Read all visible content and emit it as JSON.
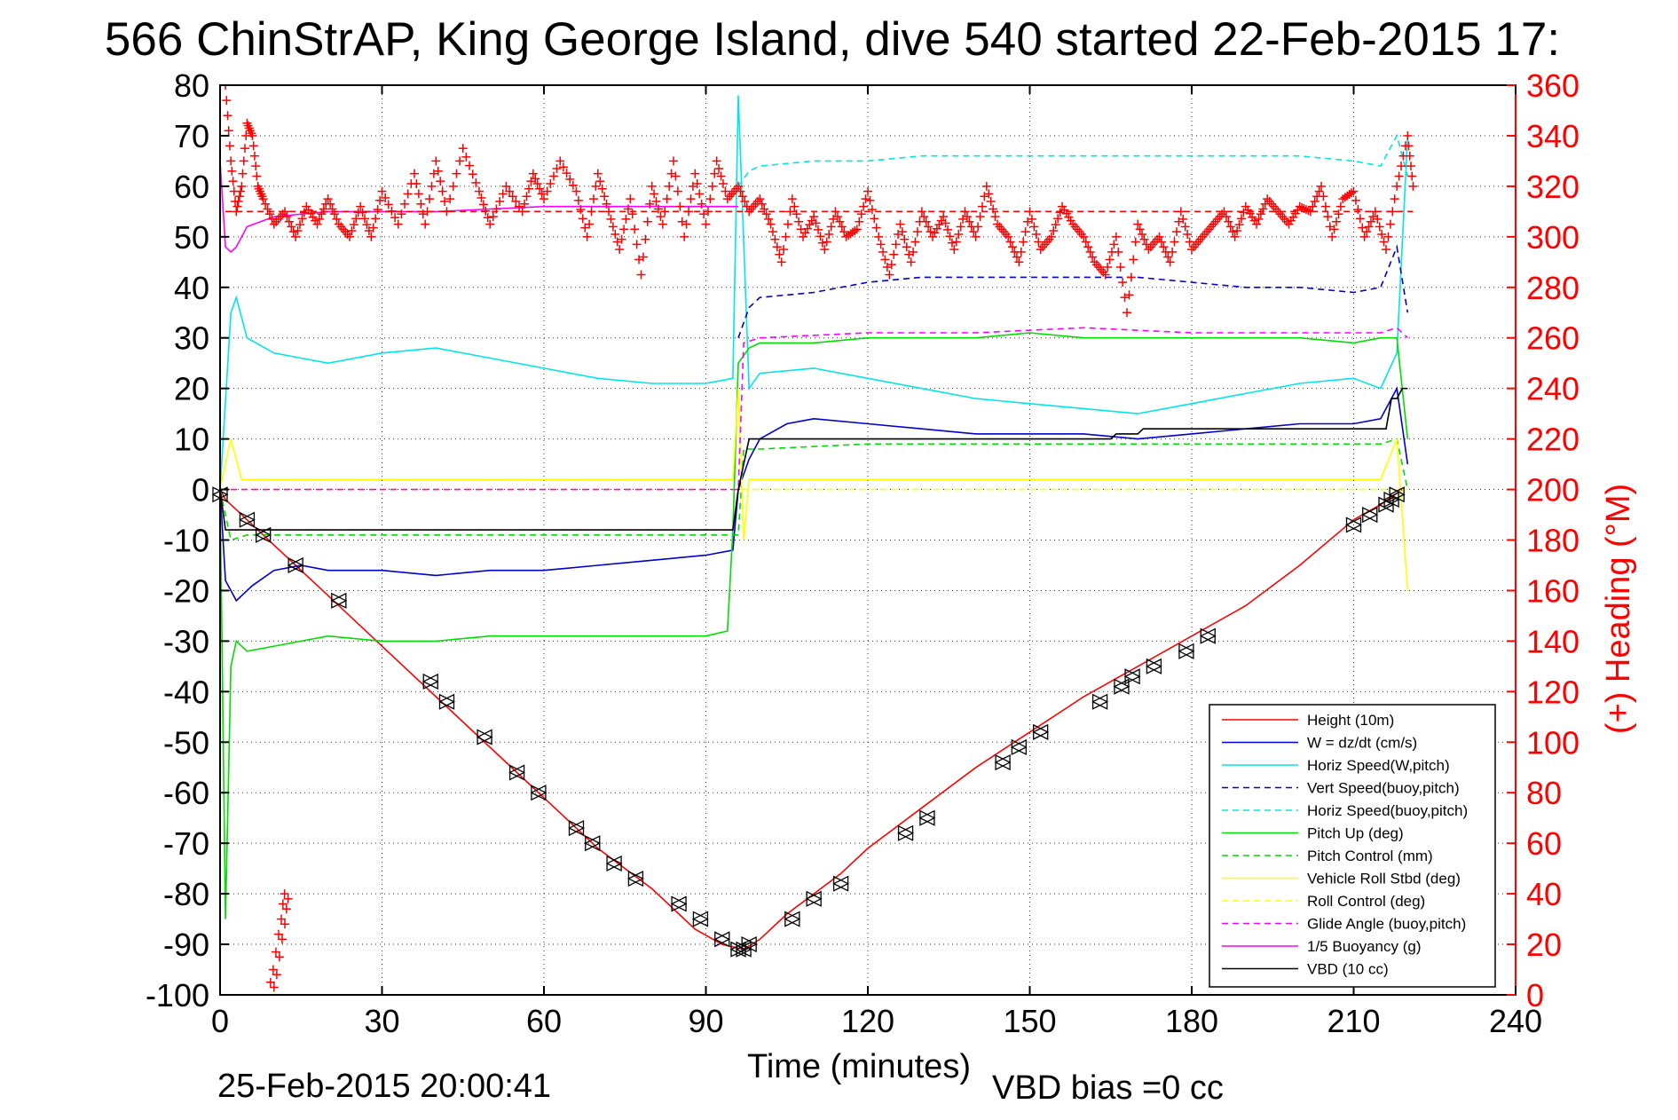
{
  "title": "566 ChinStrAP, King George Island, dive 540 started 22-Feb-2015 17:",
  "footer": {
    "date": "25-Feb-2015 20:00:41",
    "vbd_bias": "VBD bias =0 cc"
  },
  "colors": {
    "red": "#ff0000",
    "blue": "#0000cc",
    "cyan": "#00e5e5",
    "green": "#00dd00",
    "yellow": "#ffff00",
    "magenta": "#ff00ff",
    "black": "#000000"
  },
  "chart_data": {
    "type": "line",
    "title": "566 ChinStrAP, King George Island, dive 540 started 22-Feb-2015 17:",
    "xlabel": "Time (minutes)",
    "ylabel": "",
    "ylabel_right": "(+) Heading (°M)",
    "xlim": [
      0,
      240
    ],
    "ylim": [
      -100,
      80
    ],
    "ylim_right": [
      0,
      360
    ],
    "xticks": [
      "0",
      "30",
      "60",
      "90",
      "120",
      "150",
      "180",
      "210",
      "240"
    ],
    "yticks": [
      "80",
      "70",
      "60",
      "50",
      "40",
      "30",
      "20",
      "10",
      "0",
      "-10",
      "-20",
      "-30",
      "-40",
      "-50",
      "-60",
      "-70",
      "-80",
      "-90",
      "-100"
    ],
    "yticks_right": [
      "360",
      "340",
      "320",
      "300",
      "280",
      "260",
      "240",
      "220",
      "200",
      "180",
      "160",
      "140",
      "120",
      "100",
      "80",
      "60",
      "40",
      "20",
      "0"
    ],
    "grid": true,
    "legend_position": "bottom-right",
    "series": [
      {
        "name": "Height (10m)",
        "color": "#ff0000",
        "dash": false,
        "x": [
          0,
          1,
          3,
          5,
          7,
          10,
          14,
          20,
          30,
          40,
          50,
          60,
          70,
          80,
          88,
          93,
          97,
          100,
          105,
          110,
          115,
          120,
          130,
          140,
          150,
          160,
          170,
          180,
          190,
          200,
          210,
          215,
          219
        ],
        "y": [
          0,
          -2,
          -4,
          -6,
          -8,
          -11,
          -15,
          -21,
          -31,
          -41,
          -51,
          -61,
          -71,
          -79,
          -87,
          -90,
          -91,
          -89,
          -84,
          -80,
          -76,
          -71,
          -63,
          -55,
          -48,
          -41,
          -35,
          -29,
          -23,
          -15,
          -6,
          -3,
          0
        ]
      },
      {
        "name": "W = dz/dt (cm/s)",
        "color": "#0000cc",
        "dash": false,
        "x": [
          0,
          1,
          3,
          6,
          10,
          15,
          20,
          30,
          40,
          50,
          60,
          70,
          80,
          90,
          95,
          96,
          98,
          100,
          105,
          110,
          120,
          130,
          140,
          150,
          160,
          170,
          180,
          190,
          200,
          210,
          215,
          218,
          220
        ],
        "y": [
          0,
          -18,
          -22,
          -19,
          -16,
          -15,
          -16,
          -16,
          -17,
          -16,
          -16,
          -15,
          -14,
          -13,
          -12,
          0,
          6,
          10,
          13,
          14,
          13,
          12,
          11,
          11,
          11,
          10,
          11,
          12,
          13,
          13,
          14,
          20,
          5
        ]
      },
      {
        "name": "Horiz Speed(W,pitch)",
        "color": "#00e5e5",
        "dash": false,
        "x": [
          0,
          2,
          3,
          5,
          10,
          15,
          20,
          30,
          40,
          50,
          60,
          70,
          80,
          90,
          95,
          96,
          98,
          100,
          110,
          120,
          130,
          140,
          150,
          160,
          170,
          180,
          190,
          200,
          210,
          215,
          218,
          220
        ],
        "y": [
          0,
          35,
          38,
          30,
          27,
          26,
          25,
          27,
          28,
          26,
          24,
          22,
          21,
          21,
          22,
          78,
          20,
          23,
          24,
          22,
          20,
          18,
          17,
          16,
          15,
          17,
          19,
          21,
          22,
          20,
          27,
          70
        ]
      },
      {
        "name": "Vert Speed(buoy,pitch)",
        "color": "#0000cc",
        "dash": true,
        "x": [
          96,
          98,
          100,
          110,
          120,
          130,
          140,
          150,
          160,
          170,
          180,
          190,
          200,
          210,
          215,
          218,
          220
        ],
        "y": [
          30,
          36,
          38,
          39,
          41,
          42,
          42,
          42,
          42,
          42,
          41,
          40,
          40,
          39,
          40,
          48,
          35
        ]
      },
      {
        "name": "Horiz Speed(buoy,pitch)",
        "color": "#00e5e5",
        "dash": true,
        "x": [
          96,
          98,
          100,
          110,
          120,
          130,
          140,
          150,
          160,
          170,
          180,
          190,
          200,
          210,
          215,
          218,
          220
        ],
        "y": [
          60,
          63,
          64,
          65,
          65,
          66,
          66,
          66,
          66,
          66,
          66,
          66,
          66,
          65,
          64,
          70,
          62
        ]
      },
      {
        "name": "Pitch Up (deg)",
        "color": "#00dd00",
        "dash": false,
        "x": [
          0,
          1,
          2,
          3,
          5,
          10,
          15,
          20,
          30,
          40,
          50,
          60,
          70,
          80,
          90,
          94,
          95,
          96,
          98,
          100,
          110,
          120,
          130,
          140,
          150,
          160,
          170,
          180,
          190,
          200,
          210,
          215,
          218,
          220
        ],
        "y": [
          0,
          -85,
          -35,
          -30,
          -32,
          -31,
          -30,
          -29,
          -30,
          -30,
          -29,
          -29,
          -29,
          -29,
          -29,
          -28,
          -8,
          25,
          28,
          29,
          29,
          30,
          30,
          30,
          31,
          30,
          30,
          30,
          30,
          30,
          29,
          30,
          30,
          10
        ]
      },
      {
        "name": "Pitch Control (mm)",
        "color": "#00dd00",
        "dash": true,
        "x": [
          0,
          2,
          5,
          10,
          20,
          40,
          60,
          80,
          90,
          96,
          97,
          100,
          120,
          140,
          160,
          180,
          200,
          210,
          215,
          218,
          220
        ],
        "y": [
          0,
          -10,
          -9,
          -9,
          -9,
          -9,
          -9,
          -9,
          -9,
          -9,
          8,
          8,
          9,
          9,
          9,
          9,
          9,
          9,
          9,
          10,
          0
        ]
      },
      {
        "name": "Vehicle Roll Stbd (deg)",
        "color": "#ffff00",
        "dash": false,
        "x": [
          0,
          2,
          4,
          6,
          10,
          20,
          30,
          40,
          50,
          60,
          70,
          80,
          90,
          95,
          96,
          97,
          98,
          100,
          120,
          140,
          160,
          180,
          200,
          210,
          215,
          218,
          220
        ],
        "y": [
          0,
          10,
          2,
          2,
          2,
          2,
          2,
          2,
          2,
          2,
          2,
          2,
          2,
          2,
          20,
          -10,
          2,
          2,
          2,
          2,
          2,
          2,
          2,
          2,
          2,
          10,
          -20
        ]
      },
      {
        "name": "Roll Control (deg)",
        "color": "#ffff00",
        "dash": true,
        "x": [
          0,
          2,
          4,
          6,
          10,
          20,
          30,
          40,
          50,
          60,
          70,
          80,
          90,
          96,
          98,
          100,
          120,
          140,
          160,
          180,
          200,
          210,
          215,
          218,
          220
        ],
        "y": [
          0,
          0,
          0,
          0,
          0,
          0,
          0,
          0,
          0,
          0,
          0,
          0,
          0,
          0,
          0,
          0,
          0,
          0,
          0,
          0,
          0,
          0,
          0,
          0,
          0
        ]
      },
      {
        "name": "Glide Angle (buoy,pitch)",
        "color": "#ff00ff",
        "dash": true,
        "x": [
          0,
          20,
          40,
          60,
          80,
          96,
          97,
          100,
          120,
          140,
          160,
          180,
          200,
          210,
          215,
          218,
          220
        ],
        "y": [
          0,
          0,
          0,
          0,
          0,
          0,
          29,
          30,
          31,
          31,
          32,
          31,
          31,
          31,
          31,
          32,
          30
        ]
      },
      {
        "name": "1/5 Buoyancy (g)",
        "color": "#ff00ff",
        "dash": false,
        "x": [
          0,
          1,
          2,
          3,
          5,
          10,
          20,
          30,
          40,
          60,
          80,
          95,
          96
        ],
        "y": [
          65,
          48,
          47,
          48,
          52,
          54,
          55,
          55,
          55,
          56,
          56,
          56,
          56
        ]
      },
      {
        "name": "VBD (10 cc)",
        "color": "#000000",
        "dash": false,
        "x": [
          0,
          1,
          2,
          3,
          5,
          10,
          20,
          30,
          40,
          60,
          80,
          90,
          95,
          96,
          97,
          98,
          100,
          120,
          140,
          160,
          165,
          166,
          170,
          171,
          180,
          200,
          210,
          215,
          216,
          217,
          218,
          219,
          220
        ],
        "y": [
          0,
          -8,
          -8,
          -8,
          -8,
          -8,
          -8,
          -8,
          -8,
          -8,
          -8,
          -8,
          -8,
          0,
          5,
          10,
          10,
          10,
          10,
          10,
          10,
          11,
          11,
          12,
          12,
          12,
          12,
          12,
          12,
          18,
          18,
          20,
          20
        ]
      }
    ],
    "heading": {
      "name": "(+) Heading",
      "color": "#ff0000",
      "mean": 310,
      "x": [
        1,
        2,
        3,
        4,
        5,
        6,
        7,
        8,
        10,
        12,
        14,
        16,
        18,
        20,
        22,
        24,
        26,
        28,
        30,
        33,
        36,
        38,
        40,
        42,
        45,
        48,
        50,
        53,
        56,
        58,
        60,
        63,
        66,
        68,
        70,
        72,
        74,
        76,
        78,
        80,
        82,
        84,
        86,
        88,
        90,
        92,
        94,
        96,
        98,
        100,
        102,
        104,
        106,
        108,
        110,
        112,
        114,
        116,
        118,
        120,
        122,
        124,
        126,
        128,
        130,
        132,
        134,
        136,
        138,
        140,
        142,
        144,
        146,
        148,
        150,
        152,
        154,
        156,
        158,
        160,
        162,
        164,
        166,
        168,
        170,
        172,
        174,
        176,
        178,
        180,
        182,
        184,
        186,
        188,
        190,
        192,
        194,
        196,
        198,
        200,
        202,
        204,
        206,
        208,
        210,
        212,
        214,
        216,
        218,
        220,
        221
      ],
      "y": [
        360,
        330,
        310,
        320,
        345,
        340,
        320,
        315,
        305,
        310,
        300,
        312,
        305,
        315,
        305,
        300,
        312,
        300,
        318,
        305,
        325,
        305,
        330,
        310,
        335,
        318,
        305,
        320,
        310,
        325,
        315,
        330,
        318,
        300,
        325,
        310,
        295,
        315,
        285,
        320,
        305,
        330,
        300,
        325,
        305,
        330,
        315,
        320,
        310,
        315,
        305,
        290,
        315,
        300,
        308,
        295,
        310,
        300,
        303,
        318,
        300,
        285,
        305,
        290,
        310,
        300,
        308,
        295,
        310,
        300,
        320,
        305,
        300,
        290,
        310,
        295,
        300,
        312,
        305,
        300,
        290,
        285,
        300,
        270,
        305,
        295,
        300,
        290,
        310,
        295,
        300,
        305,
        310,
        300,
        312,
        305,
        315,
        310,
        305,
        312,
        310,
        320,
        300,
        315,
        318,
        300,
        310,
        295,
        320,
        340,
        320
      ]
    },
    "heading_bottom": {
      "x": [
        10,
        10.5,
        11,
        11.5,
        12,
        12.3,
        12.6
      ],
      "y": [
        3,
        8,
        15,
        22,
        28,
        34,
        38
      ]
    },
    "markers": {
      "x": [
        0,
        5,
        8,
        14,
        22,
        39,
        42,
        49,
        55,
        59,
        66,
        69,
        73,
        77,
        85,
        89,
        93,
        96,
        97,
        98,
        106,
        110,
        115,
        127,
        131,
        145,
        148,
        152,
        163,
        167,
        169,
        173,
        179,
        183,
        210,
        213,
        216,
        217,
        218
      ],
      "y": [
        -1,
        -6,
        -9,
        -15,
        -22,
        -38,
        -42,
        -49,
        -56,
        -60,
        -67,
        -70,
        -74,
        -77,
        -82,
        -85,
        -89,
        -91,
        -91,
        -90,
        -85,
        -81,
        -78,
        -68,
        -65,
        -54,
        -51,
        -48,
        -42,
        -39,
        -37,
        -35,
        -32,
        -29,
        -7,
        -5,
        -3,
        -2,
        -1
      ]
    },
    "legend": [
      {
        "label": "Height (10m)",
        "color": "#ff0000",
        "dash": false
      },
      {
        "label": "W = dz/dt (cm/s)",
        "color": "#0000cc",
        "dash": false
      },
      {
        "label": "Horiz Speed(W,pitch)",
        "color": "#00e5e5",
        "dash": false
      },
      {
        "label": "Vert Speed(buoy,pitch)",
        "color": "#0000cc",
        "dash": true
      },
      {
        "label": "Horiz Speed(buoy,pitch)",
        "color": "#00e5e5",
        "dash": true
      },
      {
        "label": "Pitch Up (deg)",
        "color": "#00dd00",
        "dash": false
      },
      {
        "label": "Pitch Control (mm)",
        "color": "#00dd00",
        "dash": true
      },
      {
        "label": "Vehicle Roll Stbd (deg)",
        "color": "#ffff00",
        "dash": false
      },
      {
        "label": "Roll Control (deg)",
        "color": "#ffff00",
        "dash": true
      },
      {
        "label": "Glide Angle (buoy,pitch)",
        "color": "#ff00ff",
        "dash": true
      },
      {
        "label": "1/5 Buoyancy (g)",
        "color": "#ff00ff",
        "dash": false
      },
      {
        "label": "VBD (10 cc)",
        "color": "#000000",
        "dash": false
      }
    ]
  }
}
